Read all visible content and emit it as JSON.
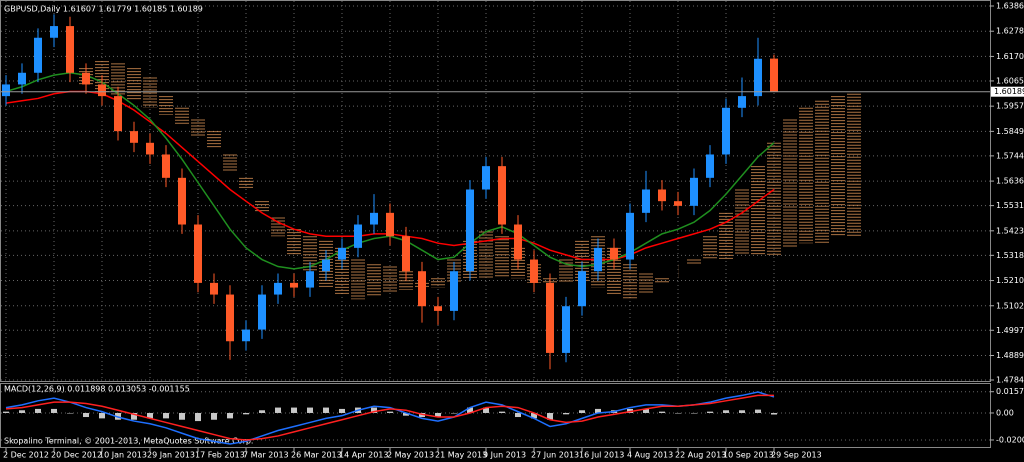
{
  "chart_data": [
    {
      "type": "candlestick",
      "title": "GBPUSD,Daily  1.61607 1.61779 1.60185 1.60189",
      "categories": [
        "2 Dec 2012",
        null,
        null,
        "20 Dec 2012",
        null,
        null,
        "10 Jan 2013",
        null,
        null,
        "29 Jan 2013",
        null,
        null,
        "17 Feb 2013",
        null,
        null,
        "7 Mar 2013",
        null,
        null,
        "26 Mar 2013",
        null,
        null,
        "14 Apr 2013",
        null,
        null,
        "2 May 2013",
        null,
        null,
        "21 May 2013",
        null,
        null,
        "9 Jun 2013",
        null,
        null,
        "27 Jun 2013",
        null,
        null,
        "16 Jul 2013",
        null,
        null,
        "4 Aug 2013",
        null,
        null,
        "22 Aug 2013",
        null,
        null,
        "10 Sep 2013",
        null,
        null,
        "29 Sep 2013",
        null,
        null,
        null,
        null,
        null
      ],
      "open": [
        1.6,
        1.605,
        1.61,
        1.625,
        1.63,
        1.61,
        1.605,
        1.6,
        1.585,
        1.58,
        1.575,
        1.565,
        1.545,
        1.52,
        1.515,
        1.495,
        1.5,
        1.515,
        1.52,
        1.518,
        1.525,
        1.53,
        1.535,
        1.545,
        1.55,
        1.54,
        1.525,
        1.51,
        1.508,
        1.525,
        1.56,
        1.57,
        1.545,
        1.53,
        1.52,
        1.49,
        1.51,
        1.525,
        1.535,
        1.53,
        1.55,
        1.56,
        1.555,
        1.553,
        1.565,
        1.575,
        1.595,
        1.6,
        1.61607,
        null,
        null,
        null,
        null,
        null
      ],
      "high": [
        1.609,
        1.614,
        1.629,
        1.635,
        1.634,
        1.614,
        1.609,
        1.604,
        1.589,
        1.584,
        1.579,
        1.569,
        1.549,
        1.524,
        1.519,
        1.504,
        1.519,
        1.524,
        1.524,
        1.529,
        1.534,
        1.539,
        1.549,
        1.558,
        1.554,
        1.544,
        1.529,
        1.514,
        1.529,
        1.564,
        1.574,
        1.574,
        1.549,
        1.534,
        1.524,
        1.514,
        1.529,
        1.539,
        1.539,
        1.554,
        1.568,
        1.564,
        1.559,
        1.569,
        1.579,
        1.599,
        1.608,
        1.625,
        1.61779,
        null,
        null,
        null,
        null,
        null
      ],
      "low": [
        1.596,
        1.601,
        1.606,
        1.621,
        1.606,
        1.601,
        1.596,
        1.581,
        1.576,
        1.571,
        1.561,
        1.541,
        1.516,
        1.511,
        1.487,
        1.491,
        1.496,
        1.511,
        1.514,
        1.514,
        1.521,
        1.526,
        1.531,
        1.541,
        1.536,
        1.521,
        1.503,
        1.502,
        1.504,
        1.521,
        1.556,
        1.541,
        1.526,
        1.516,
        1.483,
        1.486,
        1.506,
        1.521,
        1.526,
        1.526,
        1.546,
        1.551,
        1.549,
        1.549,
        1.561,
        1.571,
        1.591,
        1.596,
        1.60185,
        null,
        null,
        null,
        null,
        null
      ],
      "close": [
        1.605,
        1.61,
        1.625,
        1.63,
        1.61,
        1.605,
        1.6,
        1.585,
        1.58,
        1.575,
        1.565,
        1.545,
        1.52,
        1.515,
        1.495,
        1.5,
        1.515,
        1.52,
        1.518,
        1.525,
        1.53,
        1.535,
        1.545,
        1.55,
        1.54,
        1.525,
        1.51,
        1.508,
        1.525,
        1.56,
        1.57,
        1.545,
        1.53,
        1.52,
        1.49,
        1.51,
        1.525,
        1.535,
        1.53,
        1.55,
        1.56,
        1.555,
        1.553,
        1.565,
        1.575,
        1.595,
        1.6,
        1.616,
        1.60189,
        null,
        null,
        null,
        null,
        null
      ],
      "up_color": "#1e90ff",
      "down_color": "#ff5a28",
      "lines": [
        {
          "color": "#ff0000",
          "values": [
            1.597,
            1.598,
            1.599,
            1.601,
            1.602,
            1.602,
            1.601,
            1.598,
            1.594,
            1.589,
            1.584,
            1.578,
            1.572,
            1.566,
            1.56,
            1.555,
            1.55,
            1.546,
            1.543,
            1.541,
            1.54,
            1.54,
            1.54,
            1.541,
            1.541,
            1.54,
            1.539,
            1.537,
            1.536,
            1.537,
            1.538,
            1.539,
            1.539,
            1.537,
            1.534,
            1.532,
            1.53,
            1.53,
            1.53,
            1.532,
            1.535,
            1.537,
            1.539,
            1.541,
            1.543,
            1.546,
            1.55,
            1.555,
            1.56,
            null,
            null,
            null,
            null,
            null
          ]
        },
        {
          "color": "#1f8f1f",
          "values": [
            1.602,
            1.604,
            1.607,
            1.609,
            1.61,
            1.609,
            1.606,
            1.601,
            1.596,
            1.59,
            1.582,
            1.573,
            1.563,
            1.553,
            1.543,
            1.535,
            1.53,
            1.527,
            1.526,
            1.527,
            1.53,
            1.534,
            1.537,
            1.539,
            1.54,
            1.538,
            1.534,
            1.53,
            1.531,
            1.537,
            1.542,
            1.544,
            1.541,
            1.536,
            1.531,
            1.528,
            1.527,
            1.528,
            1.53,
            1.533,
            1.537,
            1.541,
            1.543,
            1.546,
            1.551,
            1.558,
            1.566,
            1.574,
            1.58,
            null,
            null,
            null,
            null,
            null
          ]
        }
      ],
      "cloud": {
        "up_color": "#f4a460",
        "down_color": "#e6dcdc",
        "span_a": [
          null,
          null,
          null,
          null,
          null,
          1.612,
          1.615,
          1.614,
          1.612,
          1.608,
          1.6,
          1.595,
          1.59,
          1.585,
          1.575,
          1.565,
          1.555,
          1.548,
          1.543,
          1.54,
          1.538,
          1.535,
          1.53,
          1.528,
          1.527,
          1.525,
          1.52,
          1.522,
          1.53,
          1.538,
          1.542,
          1.54,
          1.535,
          1.528,
          1.522,
          1.53,
          1.538,
          1.54,
          1.535,
          1.528,
          1.524,
          1.522,
          1.525,
          1.53,
          1.54,
          1.55,
          1.56,
          1.57,
          1.58,
          1.59,
          1.595,
          1.598,
          1.6,
          1.601
        ],
        "span_b": [
          null,
          null,
          null,
          null,
          null,
          1.605,
          1.602,
          1.6,
          1.598,
          1.595,
          1.592,
          1.588,
          1.583,
          1.578,
          1.568,
          1.56,
          1.55,
          1.54,
          1.532,
          1.525,
          1.518,
          1.515,
          1.513,
          1.514,
          1.516,
          1.517,
          1.518,
          1.518,
          1.52,
          1.522,
          1.522,
          1.522,
          1.522,
          1.52,
          1.52,
          1.52,
          1.52,
          1.518,
          1.515,
          1.513,
          1.515,
          1.52,
          1.525,
          1.528,
          1.53,
          1.53,
          1.532,
          1.532,
          1.532,
          1.535,
          1.537,
          1.537,
          1.54,
          1.54
        ]
      },
      "ylim": [
        1.4784,
        1.6386
      ],
      "yticks": [
        {
          "value": 1.6386,
          "label": "1.63860"
        },
        {
          "value": 1.6278,
          "label": "1.62780"
        },
        {
          "value": 1.617,
          "label": "1.61700"
        },
        {
          "value": 1.6065,
          "label": "1.60650"
        },
        {
          "value": 1.5957,
          "label": "1.59570"
        },
        {
          "value": 1.5849,
          "label": "1.58490"
        },
        {
          "value": 1.5744,
          "label": "1.57440"
        },
        {
          "value": 1.5636,
          "label": "1.56360"
        },
        {
          "value": 1.5531,
          "label": "1.55310"
        },
        {
          "value": 1.5423,
          "label": "1.54230"
        },
        {
          "value": 1.5318,
          "label": "1.53180"
        },
        {
          "value": 1.521,
          "label": "1.52100"
        },
        {
          "value": 1.5102,
          "label": "1.51020"
        },
        {
          "value": 1.4997,
          "label": "1.49970"
        },
        {
          "value": 1.4889,
          "label": "1.48890"
        },
        {
          "value": 1.4784,
          "label": "1.47840"
        }
      ],
      "grid": true
    },
    {
      "type": "macd",
      "title": "MACD(12,26,9) 0.011898 0.013053 -0.001155",
      "histogram": {
        "color": "#c8c8c8",
        "values": [
          0.001,
          0.002,
          0.003,
          0.003,
          0.0,
          -0.003,
          -0.004,
          -0.005,
          -0.005,
          -0.004,
          -0.004,
          -0.005,
          -0.006,
          -0.005,
          -0.004,
          -0.001,
          0.002,
          0.004,
          0.004,
          0.004,
          0.004,
          0.003,
          0.004,
          0.004,
          0.001,
          -0.002,
          -0.003,
          -0.003,
          0.0,
          0.004,
          0.004,
          0.001,
          -0.003,
          -0.004,
          -0.005,
          -0.001,
          0.002,
          0.003,
          0.002,
          0.003,
          0.003,
          0.001,
          0.0,
          0.0,
          0.001,
          0.002,
          0.002,
          0.0025,
          -0.001155
        ]
      },
      "lines": [
        {
          "color": "#1e6fff",
          "values": [
            0.004,
            0.006,
            0.009,
            0.011,
            0.008,
            0.004,
            0.001,
            -0.003,
            -0.006,
            -0.008,
            -0.011,
            -0.015,
            -0.019,
            -0.021,
            -0.023,
            -0.021,
            -0.017,
            -0.013,
            -0.01,
            -0.007,
            -0.004,
            -0.002,
            0.002,
            0.005,
            0.004,
            0.0,
            -0.004,
            -0.006,
            -0.003,
            0.004,
            0.008,
            0.006,
            0.001,
            -0.004,
            -0.01,
            -0.008,
            -0.004,
            0.0,
            0.001,
            0.004,
            0.006,
            0.006,
            0.005,
            0.006,
            0.008,
            0.011,
            0.013,
            0.0155,
            0.011898
          ]
        },
        {
          "color": "#ff2020",
          "values": [
            0.003,
            0.004,
            0.006,
            0.008,
            0.008,
            0.007,
            0.005,
            0.002,
            -0.001,
            -0.004,
            -0.007,
            -0.01,
            -0.013,
            -0.016,
            -0.019,
            -0.02,
            -0.019,
            -0.017,
            -0.014,
            -0.011,
            -0.008,
            -0.005,
            -0.002,
            0.001,
            0.003,
            0.002,
            -0.001,
            -0.003,
            -0.003,
            0.0,
            0.004,
            0.005,
            0.004,
            0.0,
            -0.005,
            -0.007,
            -0.006,
            -0.003,
            -0.001,
            0.001,
            0.003,
            0.005,
            0.005,
            0.006,
            0.007,
            0.009,
            0.011,
            0.013,
            0.013053
          ]
        }
      ],
      "ylim": [
        -0.0252,
        0.0222
      ],
      "yticks": [
        0.01575,
        {
          "value": 0,
          "label": "0.00"
        },
        {
          "value": -0.02,
          "label": "-0.0200"
        }
      ]
    }
  ],
  "footer": "Skopalino Terminal, © 2001-2013, MetaQuotes Software Corp."
}
